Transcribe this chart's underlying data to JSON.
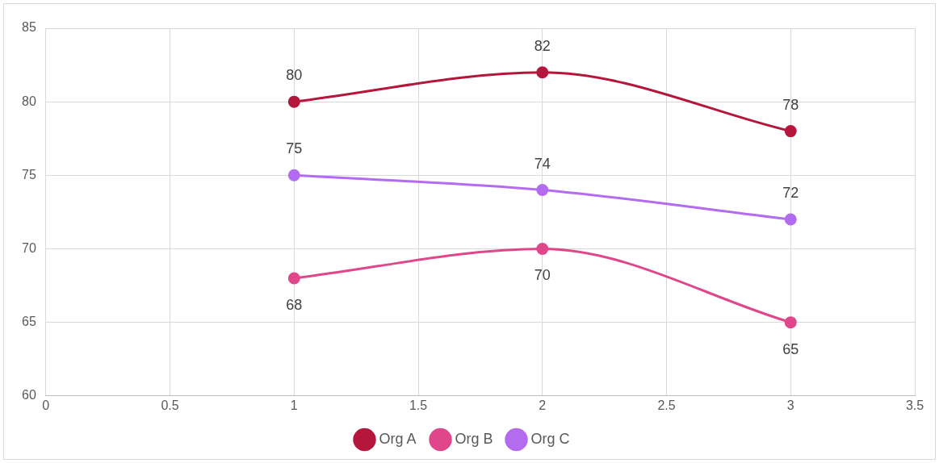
{
  "chart_data": {
    "type": "line",
    "x": [
      1,
      2,
      3
    ],
    "series": [
      {
        "name": "Org A",
        "color": "#b5173c",
        "values": [
          80,
          82,
          78
        ]
      },
      {
        "name": "Org B",
        "color": "#e0478a",
        "values": [
          68,
          70,
          65
        ]
      },
      {
        "name": "Org C",
        "color": "#b36bf0",
        "values": [
          75,
          74,
          72
        ]
      }
    ],
    "xlim": [
      0,
      3.5
    ],
    "xticks": [
      0,
      0.5,
      1,
      1.5,
      2,
      2.5,
      3,
      3.5
    ],
    "ylim": [
      60,
      85
    ],
    "yticks": [
      60,
      65,
      70,
      75,
      80,
      85
    ],
    "grid": true,
    "legend": "bottom",
    "marker": "circle",
    "line_style": "solid",
    "data_labels": true
  }
}
